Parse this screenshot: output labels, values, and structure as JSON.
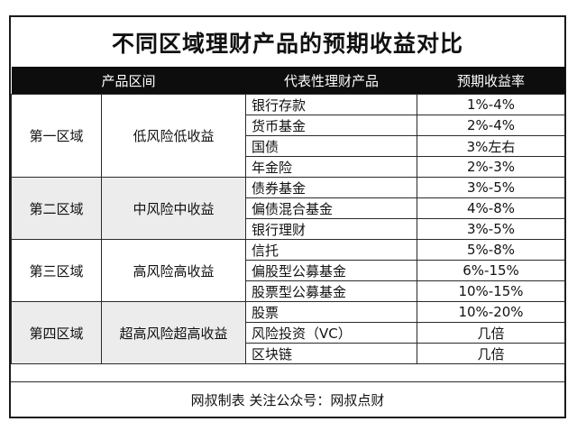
{
  "title": "不同区域理财产品的预期收益对比",
  "headers": [
    "产品区间",
    "代表性理财产品",
    "预期收益率"
  ],
  "groups": [
    {
      "zone": "第一区域",
      "risk": "低风险低收益",
      "items": [
        {
          "product": "银行存款",
          "rate": "1%-4%"
        },
        {
          "product": "货币基金",
          "rate": "2%-4%"
        },
        {
          "product": "国债",
          "rate": "3%左右"
        },
        {
          "product": "年金险",
          "rate": "2%-3%"
        }
      ]
    },
    {
      "zone": "第二区域",
      "risk": "中风险中收益",
      "items": [
        {
          "product": "债券基金",
          "rate": "3%-5%"
        },
        {
          "product": "偏债混合基金",
          "rate": "4%-8%"
        },
        {
          "product": "银行理财",
          "rate": "3%-5%"
        }
      ]
    },
    {
      "zone": "第三区域",
      "risk": "高风险高收益",
      "items": [
        {
          "product": "信托",
          "rate": "5%-8%"
        },
        {
          "product": "偏股型公募基金",
          "rate": "6%-15%"
        },
        {
          "product": "股票型公募基金",
          "rate": "10%-15%"
        }
      ]
    },
    {
      "zone": "第四区域",
      "risk": "超高风险超高收益",
      "items": [
        {
          "product": "股票",
          "rate": "10%-20%"
        },
        {
          "product": "风险投资（VC）",
          "rate": "几倍"
        },
        {
          "product": "区块链",
          "rate": "几倍"
        }
      ]
    }
  ],
  "footer": "网叔制表 关注公众号：网叔点财"
}
